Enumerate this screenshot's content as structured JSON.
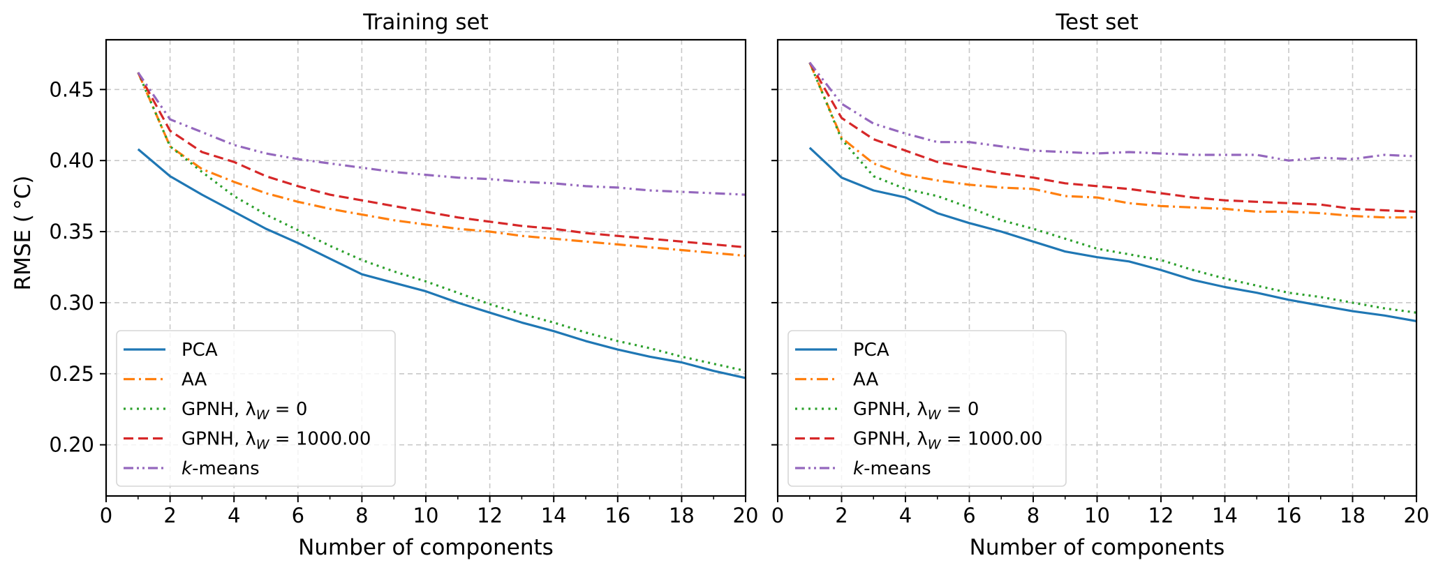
{
  "chart_data": [
    {
      "type": "line",
      "title": "Training set",
      "xlabel": "Number of components",
      "ylabel": "RMSE ($^\\circ$C)",
      "ylabel_display": "RMSE ( °C)",
      "xlim": [
        0,
        20
      ],
      "ylim": [
        0.164,
        0.485
      ],
      "xticks": [
        0,
        2,
        4,
        6,
        8,
        10,
        12,
        14,
        16,
        18,
        20
      ],
      "xtick_labels": [
        "0",
        "2",
        "4",
        "6",
        "8",
        "10",
        "12",
        "14",
        "16",
        "18",
        "20"
      ],
      "yticks": [
        0.2,
        0.25,
        0.3,
        0.35,
        0.4,
        0.45
      ],
      "ytick_labels": [
        "0.20",
        "0.25",
        "0.30",
        "0.35",
        "0.40",
        "0.45"
      ],
      "grid": true,
      "legend_position": "lower-left",
      "x": [
        1,
        2,
        3,
        4,
        5,
        6,
        7,
        8,
        9,
        10,
        11,
        12,
        13,
        14,
        15,
        16,
        17,
        18,
        19,
        20
      ],
      "series": [
        {
          "name": "PCA",
          "color": "#1f77b4",
          "style": "solid",
          "values": [
            0.408,
            0.389,
            0.376,
            0.364,
            0.352,
            0.342,
            0.331,
            0.32,
            0.314,
            0.308,
            0.3,
            0.293,
            0.286,
            0.28,
            0.273,
            0.267,
            0.262,
            0.258,
            0.252,
            0.247
          ]
        },
        {
          "name": "AA",
          "color": "#ff7f0e",
          "style": "dashdot",
          "values": [
            0.462,
            0.41,
            0.394,
            0.385,
            0.377,
            0.371,
            0.366,
            0.362,
            0.358,
            0.355,
            0.352,
            0.35,
            0.347,
            0.345,
            0.343,
            0.341,
            0.339,
            0.337,
            0.335,
            0.333
          ]
        },
        {
          "name": "GPNH, λ_W = 0",
          "color": "#2ca02c",
          "style": "dotted",
          "values": [
            0.462,
            0.41,
            0.392,
            0.375,
            0.362,
            0.351,
            0.34,
            0.33,
            0.322,
            0.315,
            0.307,
            0.299,
            0.292,
            0.286,
            0.279,
            0.273,
            0.268,
            0.262,
            0.257,
            0.252
          ]
        },
        {
          "name": "GPNH, λ_W = 1000.00",
          "color": "#d62728",
          "style": "dashed",
          "values": [
            0.462,
            0.421,
            0.406,
            0.399,
            0.389,
            0.382,
            0.376,
            0.372,
            0.368,
            0.364,
            0.36,
            0.357,
            0.354,
            0.352,
            0.349,
            0.347,
            0.345,
            0.343,
            0.341,
            0.339
          ]
        },
        {
          "name": "k-means",
          "color": "#9467bd",
          "style": "dashdotdot",
          "values": [
            0.462,
            0.429,
            0.42,
            0.411,
            0.405,
            0.401,
            0.398,
            0.395,
            0.392,
            0.39,
            0.388,
            0.387,
            0.385,
            0.384,
            0.382,
            0.381,
            0.379,
            0.378,
            0.377,
            0.376
          ]
        }
      ]
    },
    {
      "type": "line",
      "title": "Test set",
      "xlabel": "Number of components",
      "ylabel": "",
      "xlim": [
        0,
        20
      ],
      "ylim": [
        0.164,
        0.485
      ],
      "xticks": [
        0,
        2,
        4,
        6,
        8,
        10,
        12,
        14,
        16,
        18,
        20
      ],
      "xtick_labels": [
        "0",
        "2",
        "4",
        "6",
        "8",
        "10",
        "12",
        "14",
        "16",
        "18",
        "20"
      ],
      "yticks": [
        0.2,
        0.25,
        0.3,
        0.35,
        0.4,
        0.45
      ],
      "ytick_labels": [],
      "grid": true,
      "legend_position": "lower-left",
      "x": [
        1,
        2,
        3,
        4,
        5,
        6,
        7,
        8,
        9,
        10,
        11,
        12,
        13,
        14,
        15,
        16,
        17,
        18,
        19,
        20
      ],
      "series": [
        {
          "name": "PCA",
          "color": "#1f77b4",
          "style": "solid",
          "values": [
            0.409,
            0.388,
            0.379,
            0.374,
            0.363,
            0.356,
            0.35,
            0.343,
            0.336,
            0.332,
            0.329,
            0.323,
            0.316,
            0.311,
            0.307,
            0.302,
            0.298,
            0.294,
            0.291,
            0.287
          ]
        },
        {
          "name": "AA",
          "color": "#ff7f0e",
          "style": "dashdot",
          "values": [
            0.469,
            0.416,
            0.398,
            0.39,
            0.386,
            0.383,
            0.381,
            0.38,
            0.375,
            0.374,
            0.37,
            0.368,
            0.367,
            0.366,
            0.364,
            0.364,
            0.363,
            0.361,
            0.36,
            0.36
          ]
        },
        {
          "name": "GPNH, λ_W = 0",
          "color": "#2ca02c",
          "style": "dotted",
          "values": [
            0.469,
            0.415,
            0.389,
            0.38,
            0.375,
            0.367,
            0.358,
            0.352,
            0.345,
            0.338,
            0.334,
            0.33,
            0.323,
            0.317,
            0.312,
            0.307,
            0.304,
            0.3,
            0.296,
            0.293
          ]
        },
        {
          "name": "GPNH, λ_W = 1000.00",
          "color": "#d62728",
          "style": "dashed",
          "values": [
            0.469,
            0.43,
            0.415,
            0.407,
            0.399,
            0.395,
            0.391,
            0.388,
            0.384,
            0.382,
            0.38,
            0.377,
            0.374,
            0.372,
            0.371,
            0.37,
            0.369,
            0.366,
            0.365,
            0.364
          ]
        },
        {
          "name": "k-means",
          "color": "#9467bd",
          "style": "dashdotdot",
          "values": [
            0.469,
            0.44,
            0.426,
            0.419,
            0.413,
            0.413,
            0.41,
            0.407,
            0.406,
            0.405,
            0.406,
            0.405,
            0.404,
            0.404,
            0.404,
            0.4,
            0.402,
            0.401,
            0.404,
            0.403
          ]
        }
      ]
    }
  ],
  "legend": {
    "entries": [
      {
        "prefix": "PCA",
        "sub": "",
        "suffix": ""
      },
      {
        "prefix": "AA",
        "sub": "",
        "suffix": ""
      },
      {
        "prefix": "GPNH, λ",
        "sub": "W",
        "suffix": " = 0"
      },
      {
        "prefix": "GPNH, λ",
        "sub": "W",
        "suffix": " = 1000.00"
      },
      {
        "prefix": "k",
        "sub": "",
        "suffix": "-means"
      }
    ]
  }
}
